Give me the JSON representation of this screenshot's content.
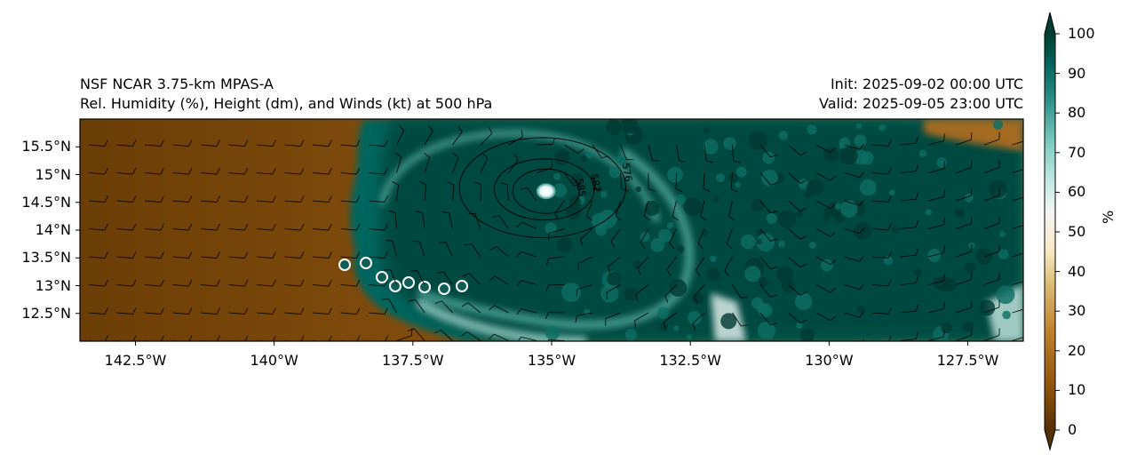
{
  "title": {
    "left_line1": "NSF NCAR 3.75-km MPAS-A",
    "left_line2": "Rel. Humidity (%), Height (dm), and Winds (kt) at 500 hPa",
    "right_line1": "Init: 2025-09-02 00:00 UTC",
    "right_line2": "Valid: 2025-09-05 23:00 UTC"
  },
  "map": {
    "lon_ticks": [
      "142.5°W",
      "140°W",
      "137.5°W",
      "135°W",
      "132.5°W",
      "130°W",
      "127.5°W"
    ],
    "lat_ticks": [
      "15.5°N",
      "15°N",
      "14.5°N",
      "14°N",
      "13.5°N",
      "13°N",
      "12.5°N"
    ],
    "lon_range": [
      -143.5,
      -126.5
    ],
    "lat_range": [
      12.0,
      16.0
    ],
    "storm_center": {
      "lon": -135.1,
      "lat": 14.7
    },
    "contours": [
      {
        "label": "576",
        "lon_radius": 1.5,
        "lat_radius": 0.9
      },
      {
        "label": "582",
        "lon_radius": 0.9,
        "lat_radius": 0.55
      },
      {
        "label": "585",
        "lon_radius": 0.6,
        "lat_radius": 0.4
      }
    ],
    "colors": {
      "dry_dark": "#553006",
      "dry": "#8c510a",
      "dry_mid": "#bf812d",
      "neutral": "#f5f5f5",
      "moist_mid": "#80cdc1",
      "moist": "#35978f",
      "moist_dark": "#01665e",
      "saturated": "#003c30"
    }
  },
  "colorbar": {
    "ticks": [
      "100",
      "90",
      "80",
      "70",
      "60",
      "50",
      "40",
      "30",
      "20",
      "10",
      "0"
    ],
    "label": "%",
    "range": [
      0,
      100
    ]
  }
}
